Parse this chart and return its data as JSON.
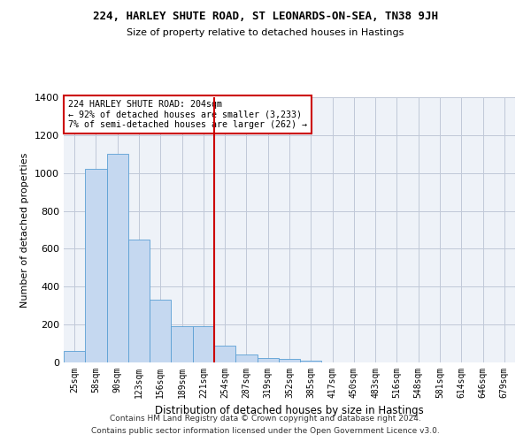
{
  "title1": "224, HARLEY SHUTE ROAD, ST LEONARDS-ON-SEA, TN38 9JH",
  "title2": "Size of property relative to detached houses in Hastings",
  "xlabel": "Distribution of detached houses by size in Hastings",
  "ylabel": "Number of detached properties",
  "footer1": "Contains HM Land Registry data © Crown copyright and database right 2024.",
  "footer2": "Contains public sector information licensed under the Open Government Licence v3.0.",
  "categories": [
    "25sqm",
    "58sqm",
    "90sqm",
    "123sqm",
    "156sqm",
    "189sqm",
    "221sqm",
    "254sqm",
    "287sqm",
    "319sqm",
    "352sqm",
    "385sqm",
    "417sqm",
    "450sqm",
    "483sqm",
    "516sqm",
    "548sqm",
    "581sqm",
    "614sqm",
    "646sqm",
    "679sqm"
  ],
  "values": [
    60,
    1020,
    1100,
    650,
    330,
    190,
    190,
    90,
    40,
    25,
    20,
    10,
    0,
    0,
    0,
    0,
    0,
    0,
    0,
    0,
    0
  ],
  "bar_color": "#c5d8f0",
  "bar_edge_color": "#5a9fd4",
  "vline_x": 6.5,
  "vline_color": "#cc0000",
  "ylim": [
    0,
    1400
  ],
  "yticks": [
    0,
    200,
    400,
    600,
    800,
    1000,
    1200,
    1400
  ],
  "annotation_text": "224 HARLEY SHUTE ROAD: 204sqm\n← 92% of detached houses are smaller (3,233)\n7% of semi-detached houses are larger (262) →",
  "annotation_box_color": "#ffffff",
  "annotation_box_edge": "#cc0000",
  "bg_color": "#eef2f8"
}
